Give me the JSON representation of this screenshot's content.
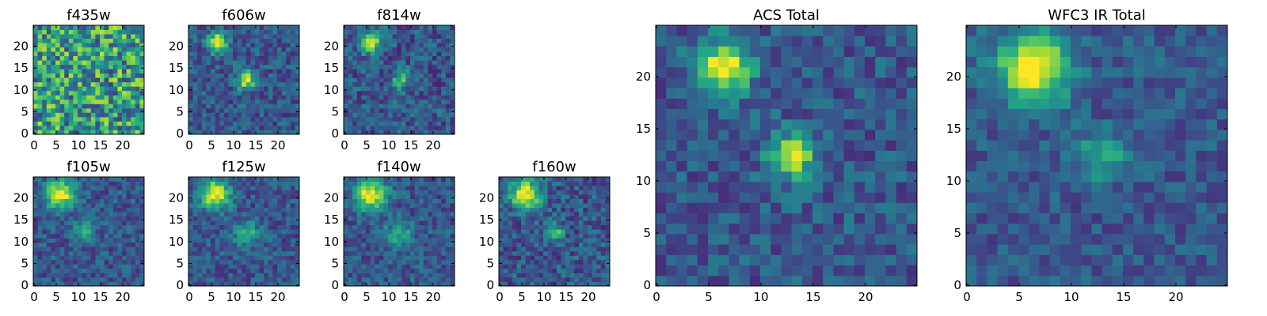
{
  "chart_data": [
    {
      "type": "heatmap",
      "title": "f435w",
      "xlim": [
        0,
        25
      ],
      "ylim": [
        0,
        25
      ],
      "xticks": [
        "0",
        "5",
        "10",
        "15",
        "20"
      ],
      "yticks": [
        "0",
        "5",
        "10",
        "15",
        "20"
      ],
      "colormap": "viridis",
      "grid": false,
      "noise_level": 0.72,
      "sources": []
    },
    {
      "type": "heatmap",
      "title": "f606w",
      "xlim": [
        0,
        25
      ],
      "ylim": [
        0,
        25
      ],
      "xticks": [
        "0",
        "5",
        "10",
        "15",
        "20"
      ],
      "yticks": [
        "0",
        "5",
        "10",
        "15",
        "20"
      ],
      "colormap": "viridis",
      "grid": false,
      "noise_level": 0.32,
      "sources": [
        {
          "x": 6.5,
          "y": 21,
          "sigma": 1.6,
          "amp": 0.75
        },
        {
          "x": 13,
          "y": 12.5,
          "sigma": 1.5,
          "amp": 0.65
        }
      ]
    },
    {
      "type": "heatmap",
      "title": "f814w",
      "xlim": [
        0,
        25
      ],
      "ylim": [
        0,
        25
      ],
      "xticks": [
        "0",
        "5",
        "10",
        "15",
        "20"
      ],
      "yticks": [
        "0",
        "5",
        "10",
        "15",
        "20"
      ],
      "colormap": "viridis",
      "grid": false,
      "noise_level": 0.35,
      "sources": [
        {
          "x": 6,
          "y": 21,
          "sigma": 1.6,
          "amp": 0.7
        },
        {
          "x": 13,
          "y": 12.5,
          "sigma": 1.4,
          "amp": 0.45
        }
      ]
    },
    {
      "type": "heatmap",
      "title": "f105w",
      "xlim": [
        0,
        25
      ],
      "ylim": [
        0,
        25
      ],
      "xticks": [
        "0",
        "5",
        "10",
        "15",
        "20"
      ],
      "yticks": [
        "0",
        "5",
        "10",
        "15",
        "20"
      ],
      "colormap": "viridis",
      "grid": false,
      "noise_level": 0.3,
      "sources": [
        {
          "x": 6,
          "y": 21,
          "sigma": 2.2,
          "amp": 0.75
        },
        {
          "x": 11.5,
          "y": 12.5,
          "sigma": 1.8,
          "amp": 0.3
        }
      ]
    },
    {
      "type": "heatmap",
      "title": "f125w",
      "xlim": [
        0,
        25
      ],
      "ylim": [
        0,
        25
      ],
      "xticks": [
        "0",
        "5",
        "10",
        "15",
        "20"
      ],
      "yticks": [
        "0",
        "5",
        "10",
        "15",
        "20"
      ],
      "colormap": "viridis",
      "grid": false,
      "noise_level": 0.3,
      "sources": [
        {
          "x": 6,
          "y": 21,
          "sigma": 2.3,
          "amp": 0.75
        },
        {
          "x": 13,
          "y": 12,
          "sigma": 2,
          "amp": 0.35
        }
      ]
    },
    {
      "type": "heatmap",
      "title": "f140w",
      "xlim": [
        0,
        25
      ],
      "ylim": [
        0,
        25
      ],
      "xticks": [
        "0",
        "5",
        "10",
        "15",
        "20"
      ],
      "yticks": [
        "0",
        "5",
        "10",
        "15",
        "20"
      ],
      "colormap": "viridis",
      "grid": false,
      "noise_level": 0.3,
      "sources": [
        {
          "x": 6,
          "y": 21,
          "sigma": 2.4,
          "amp": 0.75
        },
        {
          "x": 12.5,
          "y": 12,
          "sigma": 2,
          "amp": 0.35
        }
      ]
    },
    {
      "type": "heatmap",
      "title": "f160w",
      "xlim": [
        0,
        25
      ],
      "ylim": [
        0,
        25
      ],
      "xticks": [
        "0",
        "5",
        "10",
        "15",
        "20"
      ],
      "yticks": [
        "0",
        "5",
        "10",
        "15",
        "20"
      ],
      "colormap": "viridis",
      "grid": false,
      "noise_level": 0.35,
      "sources": [
        {
          "x": 6,
          "y": 21,
          "sigma": 2.3,
          "amp": 0.8
        },
        {
          "x": 12.5,
          "y": 12.5,
          "sigma": 1.5,
          "amp": 0.4
        }
      ]
    },
    {
      "type": "heatmap",
      "title": "ACS Total",
      "xlim": [
        0,
        25
      ],
      "ylim": [
        0,
        25
      ],
      "xticks": [
        "0",
        "5",
        "10",
        "15",
        "20"
      ],
      "yticks": [
        "0",
        "5",
        "10",
        "15",
        "20"
      ],
      "colormap": "viridis",
      "grid": false,
      "noise_level": 0.3,
      "sources": [
        {
          "x": 6.5,
          "y": 21,
          "sigma": 1.8,
          "amp": 0.75
        },
        {
          "x": 13,
          "y": 12.5,
          "sigma": 1.5,
          "amp": 0.65
        }
      ]
    },
    {
      "type": "heatmap",
      "title": "WFC3 IR Total",
      "xlim": [
        0,
        25
      ],
      "ylim": [
        0,
        25
      ],
      "xticks": [
        "0",
        "5",
        "10",
        "15",
        "20"
      ],
      "yticks": [
        "0",
        "5",
        "10",
        "15",
        "20"
      ],
      "colormap": "viridis",
      "grid": false,
      "noise_level": 0.25,
      "sources": [
        {
          "x": 6.5,
          "y": 21,
          "sigma": 2.4,
          "amp": 0.8
        },
        {
          "x": 13,
          "y": 12.5,
          "sigma": 1.6,
          "amp": 0.35
        }
      ]
    }
  ]
}
